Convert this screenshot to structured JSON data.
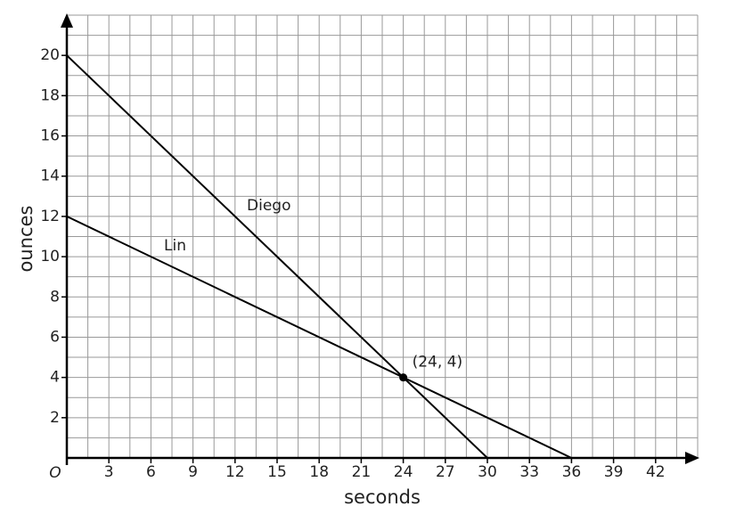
{
  "chart_data": {
    "type": "line",
    "xlabel": "seconds",
    "ylabel": "ounces",
    "origin_label": "O",
    "xlim": [
      0,
      45
    ],
    "ylim": [
      0,
      22
    ],
    "xticks": [
      3,
      6,
      9,
      12,
      15,
      18,
      21,
      24,
      27,
      30,
      33,
      36,
      39,
      42
    ],
    "yticks": [
      2,
      4,
      6,
      8,
      10,
      12,
      14,
      16,
      18,
      20
    ],
    "xgrid": [
      1.5,
      3,
      4.5,
      6,
      7.5,
      9,
      10.5,
      12,
      13.5,
      15,
      16.5,
      18,
      19.5,
      21,
      22.5,
      24,
      25.5,
      27,
      28.5,
      30,
      31.5,
      33,
      34.5,
      36,
      37.5,
      39,
      40.5,
      42,
      43.5,
      45
    ],
    "ygrid": [
      1,
      2,
      3,
      4,
      5,
      6,
      7,
      8,
      9,
      10,
      11,
      12,
      13,
      14,
      15,
      16,
      17,
      18,
      19,
      20,
      21,
      22
    ],
    "grid": true,
    "series": [
      {
        "name": "Diego",
        "color": "#000000",
        "x": [
          0,
          30
        ],
        "values": [
          20,
          0
        ]
      },
      {
        "name": "Lin",
        "color": "#000000",
        "x": [
          0,
          36
        ],
        "values": [
          12,
          0
        ]
      }
    ],
    "annotation": {
      "text": "(24, 4)",
      "x": 24,
      "y": 4
    }
  }
}
